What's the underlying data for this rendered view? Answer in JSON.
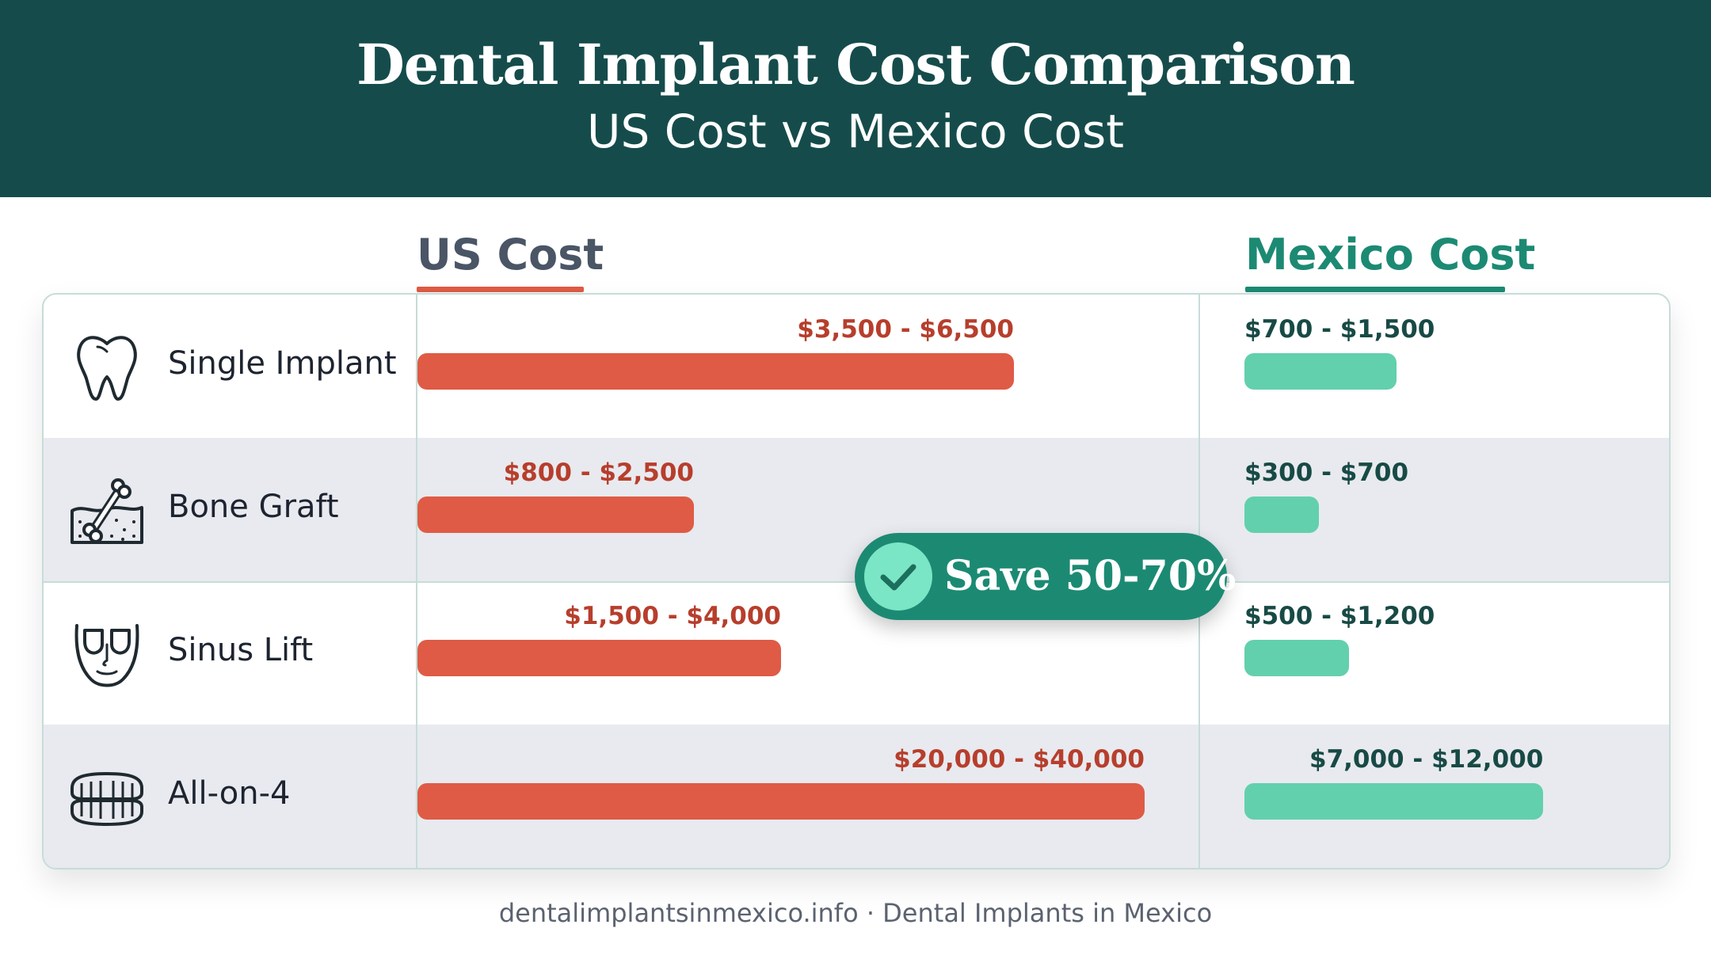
{
  "header": {
    "title": "Dental Implant Cost Comparison",
    "subtitle": "US Cost vs Mexico Cost"
  },
  "columns": {
    "us": "US Cost",
    "mexico": "Mexico Cost"
  },
  "badge": {
    "text": "Save 50-70%",
    "icon": "check-icon"
  },
  "footer": "dentalimplantsinmexico.info · Dental Implants in Mexico",
  "colors": {
    "header_bg": "#154c4b",
    "us_bar": "#df5b45",
    "mexico_bar": "#62d0ac",
    "us_label": "#b73e2c",
    "mexico_label": "#184a45",
    "badge_bg": "#1c8a73"
  },
  "chart_data": {
    "type": "bar",
    "orientation": "horizontal",
    "unit": "USD",
    "categories": [
      "Single Implant",
      "Bone Graft",
      "Sinus Lift",
      "All-on-4"
    ],
    "category_icons": [
      "tooth-icon",
      "bone-graft-icon",
      "sinus-face-icon",
      "denture-icon"
    ],
    "series": [
      {
        "name": "US Cost",
        "ranges": [
          [
            3500,
            6500
          ],
          [
            800,
            2500
          ],
          [
            1500,
            4000
          ],
          [
            20000,
            40000
          ]
        ],
        "labels": [
          "$3,500 - $6,500",
          "$800 - $2,500",
          "$1,500 - $4,000",
          "$20,000 - $40,000"
        ],
        "bar_fraction": [
          0.82,
          0.38,
          0.5,
          1.0
        ]
      },
      {
        "name": "Mexico Cost",
        "ranges": [
          [
            700,
            1500
          ],
          [
            300,
            700
          ],
          [
            500,
            1200
          ],
          [
            7000,
            12000
          ]
        ],
        "labels": [
          "$700 - $1,500",
          "$300 - $700",
          "$500 - $1,200",
          "$7,000 - $12,000"
        ],
        "bar_fraction": [
          0.51,
          0.25,
          0.35,
          1.0
        ]
      }
    ],
    "grid": false,
    "legend": "column-headers"
  }
}
